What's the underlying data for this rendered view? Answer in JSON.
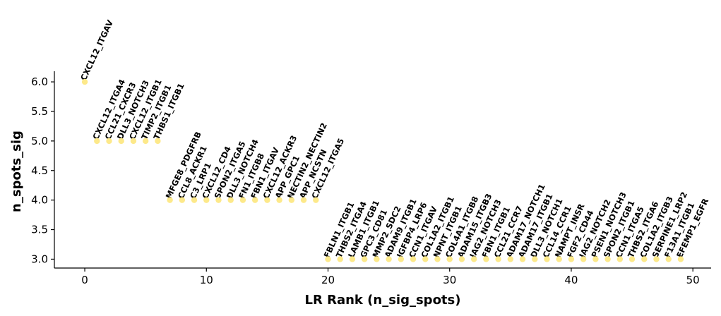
{
  "chart_data": {
    "type": "scatter",
    "title": "",
    "xlabel": "LR Rank (n_sig_spots)",
    "ylabel": "n_spots_sig",
    "xlim": [
      -2.5,
      51.5
    ],
    "ylim": [
      2.85,
      6.18
    ],
    "x_ticks": [
      0,
      10,
      20,
      30,
      40,
      50
    ],
    "y_ticks": [
      3.0,
      3.5,
      4.0,
      4.5,
      5.0,
      5.5,
      6.0
    ],
    "x_tick_labels": [
      "0",
      "10",
      "20",
      "30",
      "40",
      "50"
    ],
    "y_tick_labels": [
      "3.0",
      "3.5",
      "4.0",
      "4.5",
      "5.0",
      "5.5",
      "6.0"
    ],
    "grid": false,
    "marker_color": "#fde98a",
    "points": [
      {
        "x": 0,
        "y": 6,
        "label": "CXCL12_ITGAV"
      },
      {
        "x": 1,
        "y": 5,
        "label": "CXCL12_ITGA4"
      },
      {
        "x": 2,
        "y": 5,
        "label": "CCL21_CXCR3"
      },
      {
        "x": 3,
        "y": 5,
        "label": "DLL3_NOTCH3"
      },
      {
        "x": 4,
        "y": 5,
        "label": "CXCL12_ITGB1"
      },
      {
        "x": 5,
        "y": 5,
        "label": "TIMP2_ITGB1"
      },
      {
        "x": 6,
        "y": 5,
        "label": "THBS1_ITGB1"
      },
      {
        "x": 7,
        "y": 4,
        "label": "MFGE8_PDGFRB"
      },
      {
        "x": 8,
        "y": 4,
        "label": "CCL8_ACKR1"
      },
      {
        "x": 9,
        "y": 4,
        "label": "C3_LRP1"
      },
      {
        "x": 10,
        "y": 4,
        "label": "CXCL12_CD4"
      },
      {
        "x": 11,
        "y": 4,
        "label": "SPON2_ITGA5"
      },
      {
        "x": 12,
        "y": 4,
        "label": "DLL3_NOTCH4"
      },
      {
        "x": 13,
        "y": 4,
        "label": "FN1_ITGB8"
      },
      {
        "x": 14,
        "y": 4,
        "label": "FBN1_ITGAV"
      },
      {
        "x": 15,
        "y": 4,
        "label": "CXCL12_ACKR3"
      },
      {
        "x": 16,
        "y": 4,
        "label": "APP_GPC1"
      },
      {
        "x": 17,
        "y": 4,
        "label": "NECTIN2_NECTIN2"
      },
      {
        "x": 18,
        "y": 4,
        "label": "APP_NCSTN"
      },
      {
        "x": 19,
        "y": 4,
        "label": "CXCL12_ITGA5"
      },
      {
        "x": 20,
        "y": 3,
        "label": "FBLN1_ITGB1"
      },
      {
        "x": 21,
        "y": 3,
        "label": "THBS2_ITGA4"
      },
      {
        "x": 22,
        "y": 3,
        "label": "LAMB1_ITGB1"
      },
      {
        "x": 23,
        "y": 3,
        "label": "GPC3_CD81"
      },
      {
        "x": 24,
        "y": 3,
        "label": "MMP2_SDC2"
      },
      {
        "x": 25,
        "y": 3,
        "label": "ADAM9_ITGB1"
      },
      {
        "x": 26,
        "y": 3,
        "label": "IGFBP4_LRP6"
      },
      {
        "x": 27,
        "y": 3,
        "label": "CCN1_ITGAV"
      },
      {
        "x": 28,
        "y": 3,
        "label": "COL1A2_ITGB1"
      },
      {
        "x": 29,
        "y": 3,
        "label": "NPNT_ITGB1"
      },
      {
        "x": 30,
        "y": 3,
        "label": "COL4A1_ITGB8"
      },
      {
        "x": 31,
        "y": 3,
        "label": "ADAM15_ITGB3"
      },
      {
        "x": 32,
        "y": 3,
        "label": "JAG2_NOTCH3"
      },
      {
        "x": 33,
        "y": 3,
        "label": "FBN1_ITGB1"
      },
      {
        "x": 34,
        "y": 3,
        "label": "CCL21_CCR7"
      },
      {
        "x": 35,
        "y": 3,
        "label": "ADAM17_NOTCH1"
      },
      {
        "x": 36,
        "y": 3,
        "label": "ADAM17_ITGB1"
      },
      {
        "x": 37,
        "y": 3,
        "label": "DLL3_NOTCH1"
      },
      {
        "x": 38,
        "y": 3,
        "label": "CCL14_CCR1"
      },
      {
        "x": 39,
        "y": 3,
        "label": "NAMPT_INSR"
      },
      {
        "x": 40,
        "y": 3,
        "label": "FGF2_CD44"
      },
      {
        "x": 41,
        "y": 3,
        "label": "JAG2_NOTCH2"
      },
      {
        "x": 42,
        "y": 3,
        "label": "PSEN1_NOTCH3"
      },
      {
        "x": 43,
        "y": 3,
        "label": "SPON2_ITGB1"
      },
      {
        "x": 44,
        "y": 3,
        "label": "CCN1_ITGA5"
      },
      {
        "x": 45,
        "y": 3,
        "label": "THBS2_ITGA6"
      },
      {
        "x": 46,
        "y": 3,
        "label": "COL1A2_ITGB3"
      },
      {
        "x": 47,
        "y": 3,
        "label": "SERPINE1_LRP2"
      },
      {
        "x": 48,
        "y": 3,
        "label": "F13A1_ITGB1"
      },
      {
        "x": 49,
        "y": 3,
        "label": "EFEMP1_EGFR"
      }
    ]
  }
}
